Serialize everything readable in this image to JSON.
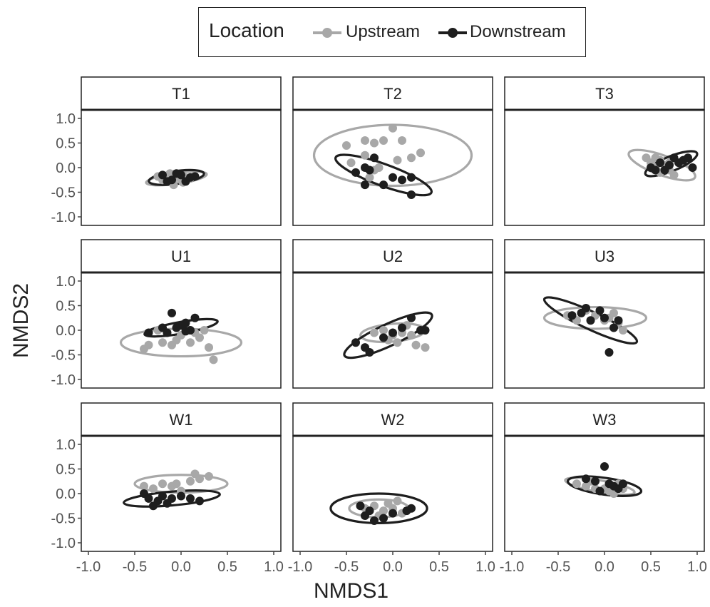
{
  "chart_data": {
    "type": "scatter",
    "facet_layout": "3x3",
    "xlabel": "NMDS1",
    "ylabel": "NMDS2",
    "xlim": [
      -1.0,
      1.0
    ],
    "ylim": [
      -1.0,
      1.0
    ],
    "xticks": [
      "-1.0",
      "-0.5",
      "0.0",
      "0.5",
      "1.0"
    ],
    "yticks": [
      "-1.0",
      "-0.5",
      "0.0",
      "0.5",
      "1.0"
    ],
    "grid": false,
    "legend": {
      "title": "Location",
      "position": "top",
      "entries": [
        {
          "label": "Upstream",
          "color": "#a8a8a8"
        },
        {
          "label": "Downstream",
          "color": "#1e1e1e"
        }
      ]
    },
    "colors": {
      "Upstream": "#a8a8a8",
      "Downstream": "#1e1e1e"
    },
    "panels": [
      {
        "label": "T1",
        "ellipses": {
          "Upstream": {
            "cx": -0.05,
            "cy": -0.22,
            "rx": 0.33,
            "ry": 0.11,
            "angle": 8
          },
          "Downstream": {
            "cx": -0.05,
            "cy": -0.2,
            "rx": 0.3,
            "ry": 0.13,
            "angle": 8
          }
        },
        "points": {
          "Upstream": [
            [
              -0.2,
              -0.25
            ],
            [
              -0.15,
              -0.2
            ],
            [
              -0.1,
              -0.3
            ],
            [
              -0.05,
              -0.2
            ],
            [
              0.0,
              -0.25
            ],
            [
              0.05,
              -0.2
            ],
            [
              -0.25,
              -0.18
            ],
            [
              0.1,
              -0.22
            ],
            [
              -0.12,
              -0.12
            ],
            [
              0.02,
              -0.3
            ],
            [
              -0.08,
              -0.35
            ]
          ],
          "Downstream": [
            [
              -0.2,
              -0.15
            ],
            [
              -0.1,
              -0.25
            ],
            [
              0.0,
              -0.15
            ],
            [
              0.1,
              -0.2
            ],
            [
              0.15,
              -0.18
            ],
            [
              -0.05,
              -0.12
            ],
            [
              0.05,
              -0.28
            ],
            [
              -0.15,
              -0.28
            ]
          ]
        }
      },
      {
        "label": "T2",
        "ellipses": {
          "Upstream": {
            "cx": 0.0,
            "cy": 0.25,
            "rx": 0.85,
            "ry": 0.62,
            "angle": 0
          },
          "Downstream": {
            "cx": -0.1,
            "cy": -0.15,
            "rx": 0.55,
            "ry": 0.22,
            "angle": -20
          },
          "Upstream_open": true
        },
        "points": {
          "Upstream": [
            [
              -0.5,
              0.45
            ],
            [
              -0.45,
              0.1
            ],
            [
              -0.3,
              0.55
            ],
            [
              -0.2,
              0.5
            ],
            [
              -0.1,
              0.55
            ],
            [
              0.0,
              0.8
            ],
            [
              0.1,
              0.55
            ],
            [
              0.2,
              0.2
            ],
            [
              0.3,
              0.3
            ],
            [
              -0.15,
              0.0
            ],
            [
              -0.2,
              -0.05
            ],
            [
              -0.25,
              -0.2
            ],
            [
              0.05,
              0.15
            ],
            [
              -0.3,
              0.25
            ]
          ],
          "Downstream": [
            [
              -0.4,
              -0.1
            ],
            [
              -0.3,
              0.0
            ],
            [
              -0.25,
              -0.05
            ],
            [
              -0.3,
              -0.35
            ],
            [
              -0.1,
              -0.35
            ],
            [
              0.0,
              -0.2
            ],
            [
              0.1,
              -0.25
            ],
            [
              0.2,
              -0.2
            ],
            [
              0.2,
              -0.55
            ],
            [
              -0.2,
              0.2
            ]
          ]
        }
      },
      {
        "label": "T3",
        "ellipses": {
          "Upstream": {
            "cx": 0.62,
            "cy": 0.05,
            "rx": 0.38,
            "ry": 0.2,
            "angle": -20
          },
          "Downstream": {
            "cx": 0.72,
            "cy": 0.08,
            "rx": 0.3,
            "ry": 0.15,
            "angle": 22
          }
        },
        "points": {
          "Upstream": [
            [
              0.45,
              0.2
            ],
            [
              0.5,
              0.1
            ],
            [
              0.55,
              0.0
            ],
            [
              0.6,
              -0.1
            ],
            [
              0.65,
              0.05
            ],
            [
              0.7,
              -0.05
            ],
            [
              0.75,
              -0.15
            ],
            [
              0.55,
              0.2
            ],
            [
              0.6,
              0.15
            ],
            [
              0.7,
              0.1
            ]
          ],
          "Downstream": [
            [
              0.5,
              0.0
            ],
            [
              0.6,
              0.1
            ],
            [
              0.7,
              0.05
            ],
            [
              0.75,
              0.2
            ],
            [
              0.8,
              0.1
            ],
            [
              0.85,
              0.15
            ],
            [
              0.9,
              0.2
            ],
            [
              0.95,
              0.0
            ],
            [
              0.65,
              -0.05
            ],
            [
              0.55,
              -0.05
            ]
          ]
        }
      },
      {
        "label": "U1",
        "ellipses": {
          "Upstream": {
            "cx": 0.0,
            "cy": -0.25,
            "rx": 0.65,
            "ry": 0.28,
            "angle": 0
          },
          "Downstream": {
            "cx": 0.0,
            "cy": 0.05,
            "rx": 0.4,
            "ry": 0.12,
            "angle": 10
          }
        },
        "points": {
          "Upstream": [
            [
              -0.4,
              -0.38
            ],
            [
              -0.35,
              -0.3
            ],
            [
              -0.2,
              -0.25
            ],
            [
              -0.1,
              -0.3
            ],
            [
              0.0,
              -0.1
            ],
            [
              0.1,
              -0.25
            ],
            [
              0.2,
              -0.15
            ],
            [
              0.3,
              -0.35
            ],
            [
              0.35,
              -0.6
            ],
            [
              -0.25,
              0.0
            ],
            [
              0.05,
              0.05
            ],
            [
              0.25,
              0.0
            ],
            [
              -0.05,
              -0.2
            ],
            [
              0.15,
              -0.05
            ]
          ],
          "Downstream": [
            [
              -0.35,
              -0.05
            ],
            [
              -0.2,
              0.05
            ],
            [
              -0.1,
              0.35
            ],
            [
              -0.05,
              0.05
            ],
            [
              0.0,
              0.1
            ],
            [
              0.05,
              0.15
            ],
            [
              0.1,
              0.0
            ],
            [
              0.15,
              0.25
            ],
            [
              -0.15,
              -0.05
            ],
            [
              0.05,
              -0.02
            ]
          ]
        }
      },
      {
        "label": "U2",
        "ellipses": {
          "Upstream": {
            "cx": 0.0,
            "cy": -0.05,
            "rx": 0.35,
            "ry": 0.18,
            "angle": 5
          },
          "Downstream": {
            "cx": -0.05,
            "cy": -0.1,
            "rx": 0.52,
            "ry": 0.22,
            "angle": 25
          }
        },
        "points": {
          "Upstream": [
            [
              -0.2,
              -0.05
            ],
            [
              -0.1,
              0.0
            ],
            [
              0.0,
              -0.1
            ],
            [
              0.05,
              -0.25
            ],
            [
              0.1,
              -0.05
            ],
            [
              0.2,
              -0.1
            ],
            [
              0.25,
              -0.3
            ],
            [
              0.35,
              -0.35
            ],
            [
              -0.05,
              -0.2
            ],
            [
              0.15,
              0.1
            ]
          ],
          "Downstream": [
            [
              -0.4,
              -0.25
            ],
            [
              -0.3,
              -0.35
            ],
            [
              -0.25,
              -0.45
            ],
            [
              0.0,
              -0.05
            ],
            [
              0.1,
              0.05
            ],
            [
              0.2,
              0.25
            ],
            [
              0.3,
              0.0
            ],
            [
              0.35,
              0.0
            ],
            [
              -0.1,
              -0.15
            ]
          ]
        }
      },
      {
        "label": "U3",
        "ellipses": {
          "Upstream": {
            "cx": -0.1,
            "cy": 0.25,
            "rx": 0.55,
            "ry": 0.22,
            "angle": 0
          },
          "Downstream": {
            "cx": -0.15,
            "cy": 0.2,
            "rx": 0.55,
            "ry": 0.18,
            "angle": -25
          }
        },
        "points": {
          "Upstream": [
            [
              -0.4,
              0.3
            ],
            [
              -0.3,
              0.2
            ],
            [
              -0.25,
              0.35
            ],
            [
              -0.1,
              0.3
            ],
            [
              0.0,
              0.2
            ],
            [
              0.1,
              0.35
            ],
            [
              0.15,
              0.15
            ],
            [
              0.2,
              0.0
            ],
            [
              -0.2,
              0.4
            ],
            [
              0.05,
              0.25
            ]
          ],
          "Downstream": [
            [
              -0.35,
              0.3
            ],
            [
              -0.25,
              0.35
            ],
            [
              -0.2,
              0.45
            ],
            [
              -0.15,
              0.2
            ],
            [
              -0.05,
              0.4
            ],
            [
              0.0,
              0.25
            ],
            [
              0.1,
              0.05
            ],
            [
              0.15,
              0.2
            ],
            [
              0.05,
              -0.45
            ]
          ]
        }
      },
      {
        "label": "W1",
        "ellipses": {
          "Upstream": {
            "cx": 0.0,
            "cy": 0.2,
            "rx": 0.5,
            "ry": 0.18,
            "angle": 0
          },
          "Downstream": {
            "cx": -0.1,
            "cy": -0.1,
            "rx": 0.52,
            "ry": 0.14,
            "angle": 5
          }
        },
        "points": {
          "Upstream": [
            [
              -0.4,
              0.15
            ],
            [
              -0.3,
              0.1
            ],
            [
              -0.2,
              0.2
            ],
            [
              -0.1,
              0.15
            ],
            [
              0.0,
              0.05
            ],
            [
              0.1,
              0.25
            ],
            [
              0.2,
              0.3
            ],
            [
              0.3,
              0.35
            ],
            [
              0.15,
              0.4
            ],
            [
              -0.05,
              0.2
            ]
          ],
          "Downstream": [
            [
              -0.4,
              0.0
            ],
            [
              -0.35,
              -0.1
            ],
            [
              -0.25,
              -0.15
            ],
            [
              -0.2,
              -0.05
            ],
            [
              -0.1,
              -0.1
            ],
            [
              0.0,
              -0.05
            ],
            [
              0.1,
              -0.1
            ],
            [
              0.2,
              -0.15
            ],
            [
              -0.3,
              -0.25
            ],
            [
              -0.15,
              -0.2
            ]
          ]
        }
      },
      {
        "label": "W2",
        "ellipses": {
          "Upstream": {
            "cx": -0.15,
            "cy": -0.3,
            "rx": 0.32,
            "ry": 0.18,
            "angle": 0
          },
          "Downstream": {
            "cx": -0.15,
            "cy": -0.3,
            "rx": 0.52,
            "ry": 0.3,
            "angle": 0
          }
        },
        "points": {
          "Upstream": [
            [
              -0.3,
              -0.3
            ],
            [
              -0.2,
              -0.25
            ],
            [
              -0.1,
              -0.35
            ],
            [
              0.0,
              -0.3
            ],
            [
              0.1,
              -0.4
            ],
            [
              -0.05,
              -0.2
            ],
            [
              -0.15,
              -0.45
            ],
            [
              0.05,
              -0.15
            ]
          ],
          "Downstream": [
            [
              -0.35,
              -0.25
            ],
            [
              -0.25,
              -0.35
            ],
            [
              -0.2,
              -0.55
            ],
            [
              -0.1,
              -0.5
            ],
            [
              0.0,
              -0.4
            ],
            [
              0.15,
              -0.35
            ],
            [
              0.2,
              -0.3
            ],
            [
              -0.3,
              -0.45
            ]
          ]
        }
      },
      {
        "label": "W3",
        "ellipses": {
          "Upstream": {
            "cx": -0.05,
            "cy": 0.15,
            "rx": 0.38,
            "ry": 0.12,
            "angle": -10
          },
          "Downstream": {
            "cx": 0.0,
            "cy": 0.15,
            "rx": 0.4,
            "ry": 0.17,
            "angle": -8
          }
        },
        "points": {
          "Upstream": [
            [
              -0.3,
              0.2
            ],
            [
              -0.2,
              0.15
            ],
            [
              -0.1,
              0.1
            ],
            [
              0.0,
              0.1
            ],
            [
              0.05,
              0.05
            ],
            [
              0.1,
              0.0
            ],
            [
              0.2,
              0.1
            ],
            [
              -0.15,
              0.25
            ],
            [
              0.15,
              0.2
            ]
          ],
          "Downstream": [
            [
              -0.2,
              0.3
            ],
            [
              -0.1,
              0.25
            ],
            [
              0.0,
              0.55
            ],
            [
              0.05,
              0.2
            ],
            [
              0.1,
              0.15
            ],
            [
              0.15,
              0.1
            ],
            [
              0.2,
              0.2
            ],
            [
              -0.05,
              0.05
            ]
          ]
        }
      }
    ]
  }
}
